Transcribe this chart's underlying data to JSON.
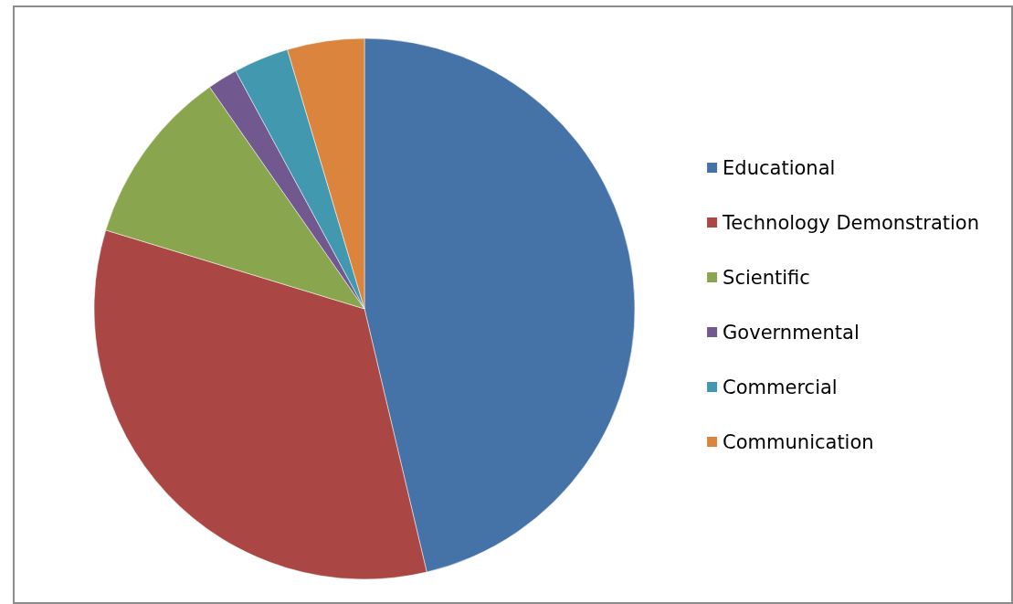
{
  "chart_data": {
    "type": "pie",
    "categories": [
      "Educational",
      "Technology Demonstration",
      "Scientific",
      "Governmental",
      "Commercial",
      "Communication"
    ],
    "values": [
      46.3,
      33.4,
      10.6,
      1.8,
      3.3,
      4.6
    ],
    "colors": [
      "#4572a7",
      "#aa4643",
      "#89a54e",
      "#71588f",
      "#4198af",
      "#db843d"
    ],
    "legend": "right"
  }
}
